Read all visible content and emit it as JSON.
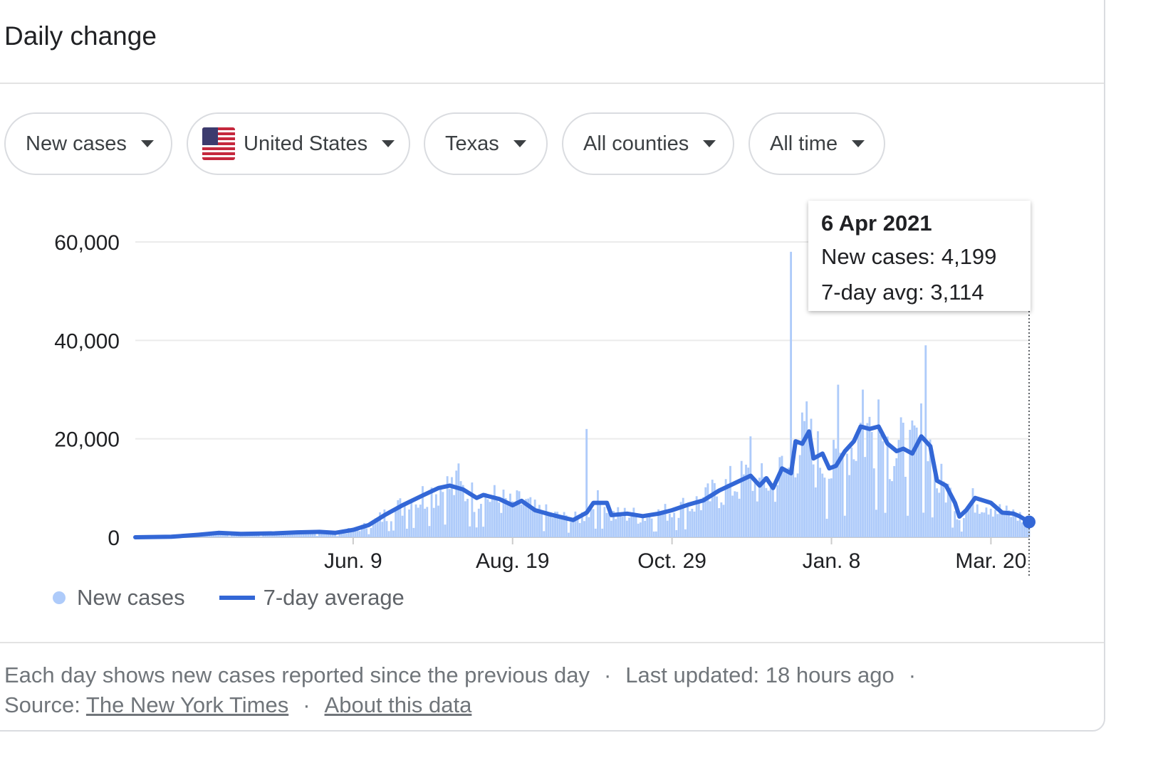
{
  "title": "Daily change",
  "filters": [
    {
      "label": "New cases"
    },
    {
      "label": "United States"
    },
    {
      "label": "Texas"
    },
    {
      "label": "All counties"
    },
    {
      "label": "All time"
    }
  ],
  "tooltip": {
    "date": "6 Apr 2021",
    "new_cases": "New cases: 4,199",
    "avg": "7-day avg: 3,114"
  },
  "legend": {
    "bars_label": "New cases",
    "line_label": "7-day average",
    "bar_color": "#aecbfa",
    "line_color": "#3367d6"
  },
  "footer": {
    "note": "Each day shows new cases reported since the previous day",
    "updated": "Last updated: 18 hours ago",
    "source_prefix": "Source:",
    "source_link": "The New York Times",
    "about_link": "About this data"
  },
  "chart_data": {
    "type": "bar",
    "xlabel": "",
    "ylabel": "",
    "ylim": [
      0,
      60000
    ],
    "y_ticks": [
      0,
      20000,
      40000,
      60000
    ],
    "y_tick_labels": [
      "0",
      "20,000",
      "40,000",
      "60,000"
    ],
    "x_tick_labels": [
      "Jun. 9",
      "Aug. 19",
      "Oct. 29",
      "Jan. 8",
      "Mar. 20"
    ],
    "x_tick_dates": [
      "2020-06-09",
      "2020-08-19",
      "2020-10-29",
      "2021-01-08",
      "2021-03-20"
    ],
    "x_range": [
      "2020-03-04",
      "2021-04-06"
    ],
    "grid": true,
    "legend_position": "bottom-left",
    "series": [
      {
        "name": "7-day average",
        "kind": "line",
        "points": [
          [
            "2020-03-04",
            0
          ],
          [
            "2020-03-20",
            100
          ],
          [
            "2020-04-01",
            500
          ],
          [
            "2020-04-10",
            900
          ],
          [
            "2020-04-20",
            700
          ],
          [
            "2020-05-05",
            800
          ],
          [
            "2020-05-15",
            1000
          ],
          [
            "2020-05-25",
            1100
          ],
          [
            "2020-06-01",
            900
          ],
          [
            "2020-06-09",
            1500
          ],
          [
            "2020-06-16",
            2500
          ],
          [
            "2020-06-23",
            4500
          ],
          [
            "2020-07-01",
            6500
          ],
          [
            "2020-07-10",
            8500
          ],
          [
            "2020-07-17",
            10000
          ],
          [
            "2020-07-22",
            10500
          ],
          [
            "2020-07-28",
            9700
          ],
          [
            "2020-08-03",
            8000
          ],
          [
            "2020-08-06",
            8600
          ],
          [
            "2020-08-13",
            7800
          ],
          [
            "2020-08-19",
            6500
          ],
          [
            "2020-08-23",
            7400
          ],
          [
            "2020-08-29",
            5500
          ],
          [
            "2020-09-05",
            4600
          ],
          [
            "2020-09-15",
            3500
          ],
          [
            "2020-09-21",
            5000
          ],
          [
            "2020-09-24",
            7000
          ],
          [
            "2020-09-30",
            7000
          ],
          [
            "2020-10-02",
            4500
          ],
          [
            "2020-10-09",
            4800
          ],
          [
            "2020-10-16",
            4300
          ],
          [
            "2020-10-23",
            4800
          ],
          [
            "2020-10-29",
            5500
          ],
          [
            "2020-11-05",
            6600
          ],
          [
            "2020-11-12",
            7500
          ],
          [
            "2020-11-19",
            9500
          ],
          [
            "2020-11-26",
            11000
          ],
          [
            "2020-12-03",
            12500
          ],
          [
            "2020-12-07",
            10500
          ],
          [
            "2020-12-10",
            12000
          ],
          [
            "2020-12-13",
            10000
          ],
          [
            "2020-12-17",
            14000
          ],
          [
            "2020-12-21",
            13000
          ],
          [
            "2020-12-23",
            19500
          ],
          [
            "2020-12-26",
            19000
          ],
          [
            "2020-12-29",
            21500
          ],
          [
            "2020-12-31",
            16000
          ],
          [
            "2021-01-04",
            17000
          ],
          [
            "2021-01-07",
            14000
          ],
          [
            "2021-01-10",
            14500
          ],
          [
            "2021-01-14",
            17500
          ],
          [
            "2021-01-18",
            19500
          ],
          [
            "2021-01-21",
            22500
          ],
          [
            "2021-01-25",
            22000
          ],
          [
            "2021-01-29",
            22500
          ],
          [
            "2021-02-02",
            19000
          ],
          [
            "2021-02-06",
            17500
          ],
          [
            "2021-02-09",
            18000
          ],
          [
            "2021-02-13",
            17000
          ],
          [
            "2021-02-17",
            20500
          ],
          [
            "2021-02-21",
            18500
          ],
          [
            "2021-02-24",
            11500
          ],
          [
            "2021-02-28",
            10500
          ],
          [
            "2021-03-04",
            7000
          ],
          [
            "2021-03-06",
            4200
          ],
          [
            "2021-03-09",
            5500
          ],
          [
            "2021-03-13",
            8000
          ],
          [
            "2021-03-20",
            7000
          ],
          [
            "2021-03-25",
            5000
          ],
          [
            "2021-03-30",
            4800
          ],
          [
            "2021-04-02",
            4200
          ],
          [
            "2021-04-06",
            3114
          ]
        ]
      },
      {
        "name": "New cases",
        "kind": "bars",
        "spikes": [
          [
            "2020-07-26",
            15000
          ],
          [
            "2020-09-21",
            22000
          ],
          [
            "2020-12-21",
            58000
          ],
          [
            "2021-01-11",
            31000
          ],
          [
            "2021-01-22",
            30000
          ],
          [
            "2021-01-29",
            28000
          ],
          [
            "2021-02-19",
            39000
          ],
          [
            "2020-12-03",
            20500
          ],
          [
            "2021-04-06",
            4199
          ]
        ]
      }
    ]
  }
}
